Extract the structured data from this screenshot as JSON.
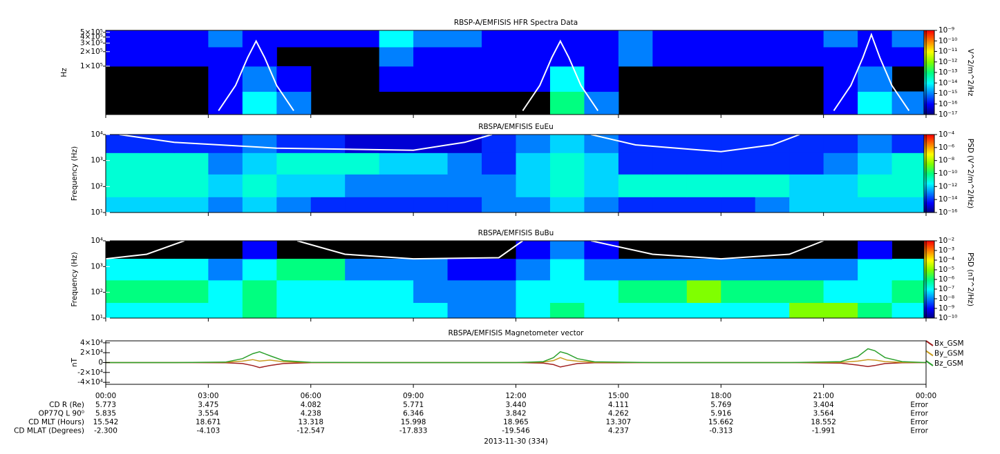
{
  "chart_data": [
    {
      "type": "heatmap",
      "title": "RBSP-A/EMFISIS  HFR Spectra Data",
      "ylabel": "Hz",
      "log_y": true,
      "ylim": [
        10000,
        550000
      ],
      "yticks": [
        {
          "value": 100000,
          "label": "1×10⁵"
        },
        {
          "value": 200000,
          "label": "2×10⁵"
        },
        {
          "value": 300000,
          "label": "3×10⁵"
        },
        {
          "value": 400000,
          "label": "4×10⁵"
        },
        {
          "value": 500000,
          "label": "5×10⁵"
        }
      ],
      "xlim": [
        0,
        24
      ],
      "xticks": [
        0,
        3,
        6,
        9,
        12,
        15,
        18,
        21,
        24
      ],
      "xbins": [
        0,
        1,
        2,
        3,
        4,
        5,
        6,
        7,
        8,
        9,
        10,
        11,
        12,
        13,
        14,
        15,
        16,
        17,
        18,
        19,
        20,
        21,
        22,
        23,
        24
      ],
      "ybins": [
        10000,
        30000,
        100000,
        250000,
        550000
      ],
      "z": [
        [
          null,
          null,
          null,
          -16,
          -14,
          -15,
          null,
          null,
          null,
          null,
          null,
          null,
          null,
          -13,
          -15,
          null,
          null,
          null,
          null,
          null,
          null,
          -16,
          -14,
          -15
        ],
        [
          null,
          null,
          null,
          -16,
          -15,
          -16,
          null,
          null,
          -16,
          -16,
          -16,
          -16,
          -16,
          -14,
          -16,
          null,
          null,
          null,
          null,
          null,
          null,
          -16,
          -15,
          null
        ],
        [
          -16,
          -16,
          -16,
          -16,
          -16,
          null,
          null,
          null,
          -15,
          -16,
          -16,
          -16,
          -16,
          -16,
          -16,
          -15,
          -16,
          -16,
          -16,
          -16,
          -16,
          -16,
          -16,
          -16
        ],
        [
          -16,
          -16,
          -16,
          -15,
          -16,
          -16,
          -16,
          -16,
          -14,
          -15,
          -15,
          -16,
          -16,
          -16,
          -16,
          -15,
          -16,
          -16,
          -16,
          -16,
          -16,
          -15,
          -16,
          -15
        ]
      ],
      "zlim": [
        -17,
        -9
      ],
      "zticks": [
        {
          "value": -9,
          "label": "10⁻⁹"
        },
        {
          "value": -10,
          "label": "10⁻¹⁰"
        },
        {
          "value": -11,
          "label": "10⁻¹¹"
        },
        {
          "value": -12,
          "label": "10⁻¹²"
        },
        {
          "value": -13,
          "label": "10⁻¹³"
        },
        {
          "value": -14,
          "label": "10⁻¹⁴"
        },
        {
          "value": -15,
          "label": "10⁻¹⁵"
        },
        {
          "value": -16,
          "label": "10⁻¹⁶"
        },
        {
          "value": -17,
          "label": "10⁻¹⁷"
        }
      ],
      "zlabel": "V^2/m^2/Hz",
      "colors": [
        "#00007f",
        "#0000ff",
        "#0080ff",
        "#00ffff",
        "#00ff80",
        "#80ff00",
        "#ffff00",
        "#ff8000",
        "#ff0000"
      ],
      "overlay": {
        "color": "#ffffff",
        "x": [
          3.3,
          3.8,
          4.15,
          4.4,
          4.65,
          5.0,
          5.5,
          9,
          12.2,
          12.7,
          13.05,
          13.3,
          13.55,
          13.9,
          14.4,
          18,
          21.3,
          21.8,
          22.15,
          22.4,
          22.65,
          23.0,
          23.5
        ],
        "values": [
          12000,
          40000,
          150000,
          330000,
          150000,
          40000,
          12000,
          null,
          12000,
          40000,
          150000,
          330000,
          150000,
          40000,
          12000,
          null,
          12000,
          40000,
          150000,
          450000,
          150000,
          40000,
          12000
        ]
      }
    },
    {
      "type": "heatmap",
      "title": "RBSPA/EMFISIS  EuEu",
      "ylabel": "Frequency (Hz)",
      "log_y": true,
      "ylim": [
        10,
        10000
      ],
      "yticks": [
        {
          "value": 10,
          "label": "10¹"
        },
        {
          "value": 100,
          "label": "10²"
        },
        {
          "value": 1000,
          "label": "10³"
        },
        {
          "value": 10000,
          "label": "10⁴"
        }
      ],
      "xlim": [
        0,
        24
      ],
      "xticks": [
        0,
        3,
        6,
        9,
        12,
        15,
        18,
        21,
        24
      ],
      "xbins": [
        0,
        1,
        2,
        3,
        4,
        5,
        6,
        7,
        8,
        9,
        10,
        11,
        12,
        13,
        14,
        15,
        16,
        17,
        18,
        19,
        20,
        21,
        22,
        23,
        24
      ],
      "ybins": [
        10,
        40,
        300,
        2000,
        10000
      ],
      "z": [
        [
          -12,
          -12,
          -12,
          -13,
          -12,
          -13,
          -14,
          -14,
          -14,
          -14,
          -14,
          -13,
          -13,
          -12,
          -13,
          -14,
          -14,
          -14,
          -14,
          -13,
          -12,
          -12,
          -12,
          -12
        ],
        [
          -11,
          -11,
          -11,
          -12,
          -11,
          -12,
          -12,
          -13,
          -13,
          -13,
          -13,
          -13,
          -12,
          -11,
          -12,
          -11,
          -11,
          -11,
          -11,
          -11,
          -12,
          -12,
          -11,
          -11
        ],
        [
          -11,
          -11,
          -11,
          -13,
          -12,
          -11,
          -11,
          -11,
          -12,
          -12,
          -13,
          -14,
          -12,
          -11,
          -12,
          -14,
          -14,
          -14,
          -14,
          -14,
          -14,
          -13,
          -12,
          -11
        ],
        [
          -14,
          -14,
          -14,
          -14,
          -13,
          -14,
          -14,
          -15,
          -15,
          -15,
          -15,
          -14,
          -13,
          -12,
          -13,
          -14,
          -14,
          -14,
          -14,
          -14,
          -14,
          -14,
          -13,
          -14
        ]
      ],
      "zlim": [
        -16,
        -4
      ],
      "zticks": [
        {
          "value": -4,
          "label": "10⁻⁴"
        },
        {
          "value": -6,
          "label": "10⁻⁶"
        },
        {
          "value": -8,
          "label": "10⁻⁸"
        },
        {
          "value": -10,
          "label": "10⁻¹⁰"
        },
        {
          "value": -12,
          "label": "10⁻¹²"
        },
        {
          "value": -14,
          "label": "10⁻¹⁴"
        },
        {
          "value": -16,
          "label": "10⁻¹⁶"
        }
      ],
      "zlabel": "PSD (V^2/m^2/Hz)",
      "colors": [
        "#00007f",
        "#0000ff",
        "#0080ff",
        "#00ffff",
        "#00ff80",
        "#80ff00",
        "#ffff00",
        "#ff8000",
        "#ff0000"
      ],
      "overlay": {
        "color": "#ffffff",
        "x": [
          0.4,
          2,
          5,
          9,
          10.5,
          11.3,
          12.5,
          14.2,
          15.5,
          18,
          19.5,
          20.3
        ],
        "values": [
          10000,
          5000,
          3000,
          2500,
          5000,
          10000,
          null,
          10000,
          4000,
          2200,
          4000,
          10000
        ]
      }
    },
    {
      "type": "heatmap",
      "title": "RBSPA/EMFISIS  BuBu",
      "ylabel": "Frequency (Hz)",
      "log_y": true,
      "ylim": [
        10,
        10000
      ],
      "yticks": [
        {
          "value": 10,
          "label": "10¹"
        },
        {
          "value": 100,
          "label": "10²"
        },
        {
          "value": 1000,
          "label": "10³"
        },
        {
          "value": 10000,
          "label": "10⁴"
        }
      ],
      "xlim": [
        0,
        24
      ],
      "xticks": [
        0,
        3,
        6,
        9,
        12,
        15,
        18,
        21,
        24
      ],
      "xbins": [
        0,
        1,
        2,
        3,
        4,
        5,
        6,
        7,
        8,
        9,
        10,
        11,
        12,
        13,
        14,
        15,
        16,
        17,
        18,
        19,
        20,
        21,
        22,
        23,
        24
      ],
      "ybins": [
        10,
        40,
        300,
        2000,
        10000
      ],
      "z": [
        [
          -7,
          -7,
          -7,
          -7,
          -6,
          -7,
          -7,
          -7,
          -7,
          -7,
          -8,
          -8,
          -7,
          -6,
          -7,
          -7,
          -7,
          -7,
          -7,
          -7,
          -5,
          -5,
          -6,
          -7
        ],
        [
          -6,
          -6,
          -6,
          -7,
          -6,
          -7,
          -7,
          -7,
          -7,
          -8,
          -8,
          -8,
          -7,
          -7,
          -7,
          -6,
          -6,
          -5,
          -6,
          -6,
          -6,
          -7,
          -7,
          -6
        ],
        [
          -7,
          -7,
          -7,
          -8,
          -7,
          -6,
          -6,
          -8,
          -8,
          -8,
          -9,
          -9,
          -8,
          -7,
          -8,
          -8,
          -8,
          -8,
          -8,
          -8,
          -8,
          -8,
          -7,
          -7
        ],
        [
          null,
          null,
          null,
          null,
          -9,
          null,
          null,
          null,
          null,
          null,
          null,
          null,
          -9,
          -8,
          -9,
          null,
          null,
          null,
          null,
          null,
          null,
          null,
          -9,
          null
        ]
      ],
      "zlim": [
        -10,
        -2
      ],
      "zticks": [
        {
          "value": -2,
          "label": "10⁻²"
        },
        {
          "value": -3,
          "label": "10⁻³"
        },
        {
          "value": -4,
          "label": "10⁻⁴"
        },
        {
          "value": -5,
          "label": "10⁻⁵"
        },
        {
          "value": -6,
          "label": "10⁻⁶"
        },
        {
          "value": -7,
          "label": "10⁻⁷"
        },
        {
          "value": -8,
          "label": "10⁻⁸"
        },
        {
          "value": -9,
          "label": "10⁻⁹"
        },
        {
          "value": -10,
          "label": "10⁻¹⁰"
        }
      ],
      "zlabel": "PSD (nT^2/Hz)",
      "colors": [
        "#00007f",
        "#0000ff",
        "#0080ff",
        "#00ffff",
        "#00ff80",
        "#80ff00",
        "#ffff00",
        "#ff8000",
        "#ff0000"
      ],
      "overlay": {
        "color": "#ffffff",
        "x": [
          0,
          1.2,
          2.3,
          4,
          5.6,
          7,
          9,
          11.5,
          12.2,
          13,
          14.2,
          16,
          18,
          20,
          21
        ],
        "values": [
          2000,
          3000,
          10000,
          null,
          10000,
          3000,
          2000,
          2200,
          10000,
          null,
          10000,
          3000,
          2000,
          3000,
          10000
        ]
      }
    },
    {
      "type": "line",
      "title": "RBSPA/EMFISIS  Magnetometer vector",
      "ylabel": "nT",
      "ylim": [
        -44000,
        44000
      ],
      "yticks": [
        {
          "value": 40000,
          "label": "4×10⁴"
        },
        {
          "value": 20000,
          "label": "2×10⁴"
        },
        0,
        {
          "value": -20000,
          "label": "-2×10⁴"
        },
        {
          "value": -40000,
          "label": "-4×10⁴"
        }
      ],
      "xlim": [
        0,
        24
      ],
      "xticks": [
        {
          "value": 0,
          "label": "00:00"
        },
        {
          "value": 3,
          "label": "03:00"
        },
        {
          "value": 6,
          "label": "06:00"
        },
        {
          "value": 9,
          "label": "09:00"
        },
        {
          "value": 12,
          "label": "12:00"
        },
        {
          "value": 15,
          "label": "15:00"
        },
        {
          "value": 18,
          "label": "18:00"
        },
        {
          "value": 21,
          "label": "21:00"
        },
        {
          "value": 24,
          "label": "00:00"
        }
      ],
      "x": [
        0,
        2,
        3.5,
        4.0,
        4.3,
        4.5,
        4.8,
        5.2,
        6,
        8,
        12,
        12.8,
        13.1,
        13.3,
        13.5,
        13.8,
        14.3,
        16,
        20,
        21.5,
        22.0,
        22.3,
        22.5,
        22.8,
        23.3,
        24
      ],
      "series": [
        {
          "name": "Bx_GSM",
          "color": "#a01e1e",
          "values": [
            0,
            0,
            -300,
            -2000,
            -6000,
            -10000,
            -6000,
            -2000,
            -200,
            0,
            0,
            -1000,
            -4000,
            -9000,
            -6000,
            -2000,
            -400,
            0,
            0,
            -1000,
            -5000,
            -8000,
            -6000,
            -2000,
            -300,
            0
          ]
        },
        {
          "name": "By_GSM",
          "color": "#c89b1e",
          "values": [
            0,
            0,
            500,
            3000,
            6000,
            3000,
            5000,
            1500,
            200,
            0,
            0,
            1000,
            4000,
            10000,
            5000,
            3000,
            500,
            0,
            0,
            500,
            3000,
            6000,
            5000,
            2000,
            500,
            0
          ]
        },
        {
          "name": "Bz_GSM",
          "color": "#2ca02c",
          "values": [
            0,
            0,
            1000,
            8000,
            18000,
            22000,
            14000,
            4000,
            500,
            0,
            0,
            2000,
            10000,
            22000,
            18000,
            8000,
            1500,
            0,
            0,
            2000,
            12000,
            28000,
            24000,
            10000,
            2000,
            0
          ]
        }
      ],
      "legend": "right"
    }
  ],
  "ephemeris": {
    "rows": [
      {
        "label": "CD R (Re)",
        "values": [
          "5.773",
          "3.475",
          "4.082",
          "5.771",
          "3.440",
          "4.111",
          "5.769",
          "3.404",
          "Error"
        ]
      },
      {
        "label": "OP77Q L 90⁰",
        "values": [
          "5.835",
          "3.554",
          "4.238",
          "6.346",
          "3.842",
          "4.262",
          "5.916",
          "3.564",
          "Error"
        ]
      },
      {
        "label": "CD MLT (Hours)",
        "values": [
          "15.542",
          "18.671",
          "13.318",
          "15.998",
          "18.965",
          "13.307",
          "15.662",
          "18.552",
          "Error"
        ]
      },
      {
        "label": "CD MLAT (Degrees)",
        "values": [
          "-2.300",
          "-4.103",
          "-12.547",
          "-17.833",
          "-19.546",
          "4.237",
          "-0.313",
          "-1.991",
          "Error"
        ]
      }
    ],
    "date": "2013-11-30 (334)"
  }
}
